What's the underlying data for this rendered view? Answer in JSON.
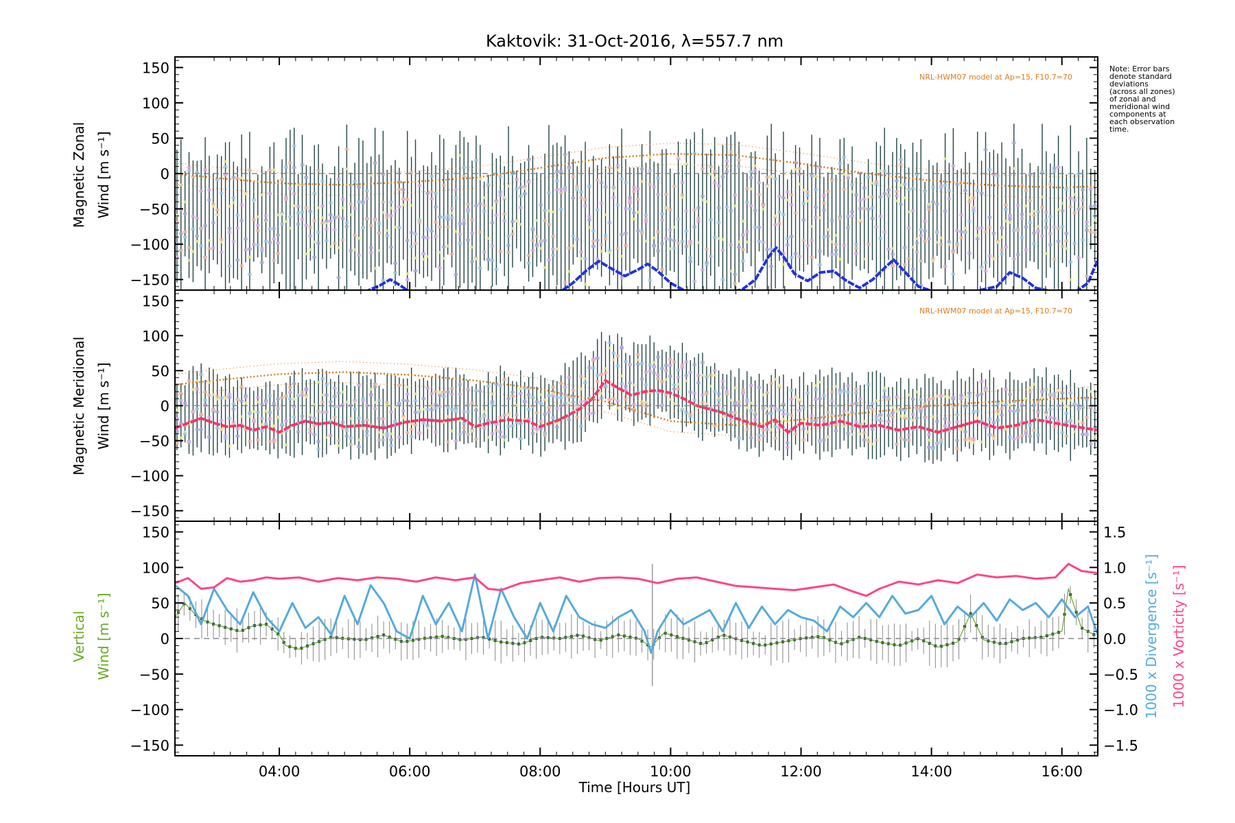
{
  "chart_data": [
    {
      "type": "line",
      "panel": "zonal",
      "title": "Kaktovik: 31-Oct-2016, λ=557.7 nm",
      "ylabel_line1": "Magnetic Zonal",
      "ylabel_line2": "Wind [m s⁻¹]",
      "xlabel": "",
      "model_label": "NRL-HWM07 model at Ap=15, F10.7=70",
      "ylim": [
        -165,
        165
      ],
      "yticks": [
        -150,
        -100,
        -50,
        0,
        50,
        100,
        150
      ],
      "xlim_hours": [
        2.4,
        16.55
      ],
      "series": [
        {
          "color": "#2233dd",
          "x": [
            2.4,
            3.2,
            4.0,
            4.8,
            5.3,
            5.55,
            5.7,
            5.85,
            6.0,
            7.2,
            8.3,
            8.5,
            8.7,
            8.9,
            9.1,
            9.3,
            9.5,
            9.65,
            9.8,
            10.0,
            10.2,
            10.5,
            10.7,
            10.9,
            11.1,
            11.3,
            11.5,
            11.62,
            11.75,
            11.9,
            12.1,
            12.3,
            12.5,
            12.7,
            12.9,
            13.1,
            13.3,
            13.42,
            13.6,
            13.8,
            14.0,
            14.6,
            15.0,
            15.2,
            15.4,
            15.6,
            15.9,
            16.2,
            16.4,
            16.55
          ],
          "values": [
            -168,
            -168,
            -168,
            -168,
            -168,
            -158,
            -150,
            -158,
            -168,
            -168,
            -168,
            -155,
            -138,
            -124,
            -135,
            -145,
            -136,
            -128,
            -138,
            -155,
            -165,
            -168,
            -166,
            -168,
            -164,
            -150,
            -118,
            -105,
            -120,
            -142,
            -152,
            -140,
            -138,
            -152,
            -162,
            -150,
            -132,
            -122,
            -140,
            -160,
            -166,
            -168,
            -160,
            -140,
            -148,
            -162,
            -168,
            -168,
            -155,
            -122
          ]
        },
        {
          "name": "NRL-HWM07",
          "color": "#e07a1a",
          "x": [
            2.4,
            3.0,
            4.0,
            5.0,
            6.0,
            7.0,
            8.0,
            9.0,
            10.0,
            11.0,
            12.0,
            13.0,
            14.0,
            15.0,
            16.0,
            16.55
          ],
          "values": [
            0,
            -6,
            -14,
            -16,
            -12,
            -6,
            8,
            22,
            28,
            26,
            14,
            0,
            -10,
            -17,
            -20,
            -18
          ]
        }
      ]
    },
    {
      "type": "line",
      "panel": "meridional",
      "ylabel_line1": "Magnetic Meridional",
      "ylabel_line2": "Wind [m s⁻¹]",
      "model_label": "NRL-HWM07 model at Ap=15, F10.7=70",
      "ylim": [
        -165,
        165
      ],
      "yticks": [
        -150,
        -100,
        -50,
        0,
        50,
        100,
        150
      ],
      "series": [
        {
          "color": "#ff3366",
          "x": [
            2.4,
            2.6,
            2.8,
            3.0,
            3.2,
            3.4,
            3.6,
            3.8,
            4.0,
            4.2,
            4.4,
            4.6,
            4.8,
            5.0,
            5.3,
            5.6,
            5.9,
            6.2,
            6.5,
            6.8,
            7.0,
            7.2,
            7.5,
            7.8,
            8.0,
            8.3,
            8.6,
            8.8,
            9.0,
            9.2,
            9.4,
            9.6,
            9.8,
            10.0,
            10.2,
            10.4,
            10.6,
            10.8,
            11.0,
            11.2,
            11.4,
            11.6,
            11.8,
            12.0,
            12.3,
            12.6,
            12.9,
            13.2,
            13.5,
            13.8,
            14.1,
            14.4,
            14.7,
            15.0,
            15.3,
            15.6,
            15.9,
            16.2,
            16.55
          ],
          "values": [
            -32,
            -25,
            -18,
            -25,
            -30,
            -28,
            -35,
            -30,
            -38,
            -28,
            -22,
            -26,
            -24,
            -30,
            -28,
            -32,
            -24,
            -20,
            -22,
            -18,
            -30,
            -25,
            -20,
            -22,
            -30,
            -20,
            -5,
            10,
            36,
            25,
            15,
            20,
            22,
            18,
            10,
            0,
            -5,
            -10,
            -18,
            -24,
            -30,
            -20,
            -38,
            -25,
            -28,
            -22,
            -30,
            -28,
            -35,
            -30,
            -38,
            -30,
            -22,
            -32,
            -28,
            -20,
            -25,
            -30,
            -35
          ]
        },
        {
          "name": "NRL-HWM07",
          "color": "#e07a1a",
          "x": [
            2.4,
            3.0,
            4.0,
            5.0,
            6.0,
            7.0,
            8.0,
            8.5,
            9.0,
            9.5,
            10.0,
            11.0,
            12.0,
            13.0,
            14.0,
            15.0,
            16.0,
            16.55
          ],
          "values": [
            30,
            36,
            45,
            48,
            44,
            36,
            24,
            14,
            6,
            -8,
            -22,
            -28,
            -20,
            -10,
            0,
            6,
            10,
            12
          ]
        }
      ]
    },
    {
      "type": "line",
      "panel": "vertical",
      "ylabel_line1": "Vertical",
      "ylabel_line2": "Wind [m s⁻¹]",
      "xlabel": "Time [Hours UT]",
      "y2label_divergence": "1000 x Divergence [s⁻¹]",
      "y2label_vorticity": "1000 x Vorticity [s⁻¹]",
      "ylim": [
        -165,
        165
      ],
      "yticks": [
        -150,
        -100,
        -50,
        0,
        50,
        100,
        150
      ],
      "y2lim": [
        -1.65,
        1.65
      ],
      "y2ticks": [
        "-1.5",
        "-1.0",
        "-0.5",
        "0.0",
        "0.5",
        "1.0",
        "1.5"
      ],
      "xticks": [
        "04:00",
        "06:00",
        "08:00",
        "10:00",
        "12:00",
        "14:00",
        "16:00"
      ],
      "series": [
        {
          "color": "#66aa22",
          "x": [
            2.4,
            2.55,
            2.7,
            2.85,
            3.0,
            3.2,
            3.4,
            3.6,
            3.8,
            4.0,
            4.1,
            4.3,
            4.5,
            4.8,
            5.0,
            5.3,
            5.6,
            5.9,
            6.2,
            6.5,
            6.8,
            7.1,
            7.4,
            7.7,
            8.0,
            8.3,
            8.6,
            8.9,
            9.2,
            9.5,
            9.7,
            9.9,
            10.2,
            10.5,
            10.8,
            11.1,
            11.4,
            11.7,
            12.0,
            12.3,
            12.6,
            12.9,
            13.2,
            13.5,
            13.8,
            14.1,
            14.4,
            14.6,
            14.8,
            15.1,
            15.4,
            15.7,
            16.0,
            16.1,
            16.3,
            16.5
          ],
          "values": [
            30,
            50,
            35,
            25,
            20,
            15,
            10,
            18,
            20,
            5,
            -10,
            -15,
            -8,
            2,
            0,
            -2,
            5,
            -5,
            0,
            3,
            -2,
            2,
            -5,
            -8,
            2,
            0,
            5,
            -3,
            5,
            0,
            -12,
            8,
            0,
            -8,
            5,
            -3,
            -10,
            -5,
            0,
            3,
            -8,
            2,
            -5,
            -10,
            0,
            -12,
            -5,
            35,
            -2,
            -8,
            0,
            2,
            10,
            70,
            15,
            5
          ]
        },
        {
          "color": "#55aadd",
          "x": [
            2.4,
            2.6,
            2.8,
            3.0,
            3.2,
            3.4,
            3.6,
            3.8,
            4.0,
            4.2,
            4.4,
            4.6,
            4.8,
            5.0,
            5.2,
            5.4,
            5.6,
            5.8,
            6.0,
            6.2,
            6.4,
            6.6,
            6.8,
            7.0,
            7.2,
            7.4,
            7.6,
            7.8,
            8.0,
            8.2,
            8.4,
            8.6,
            8.8,
            9.0,
            9.2,
            9.4,
            9.6,
            9.7,
            9.8,
            10.0,
            10.2,
            10.4,
            10.6,
            10.8,
            11.0,
            11.2,
            11.4,
            11.6,
            11.8,
            12.0,
            12.2,
            12.4,
            12.6,
            12.8,
            13.0,
            13.2,
            13.4,
            13.6,
            13.8,
            14.0,
            14.2,
            14.4,
            14.6,
            14.8,
            15.0,
            15.2,
            15.4,
            15.6,
            15.8,
            16.0,
            16.2,
            16.4,
            16.55
          ],
          "values": [
            0.75,
            0.6,
            0.2,
            0.7,
            0.4,
            0.2,
            0.65,
            0.3,
            0.1,
            0.5,
            0.15,
            0.3,
            0.05,
            0.6,
            0.2,
            0.75,
            0.5,
            0.1,
            0.0,
            0.6,
            0.2,
            0.5,
            0.1,
            0.9,
            0.0,
            0.7,
            0.3,
            0.0,
            0.5,
            0.1,
            0.6,
            0.3,
            0.2,
            0.15,
            0.3,
            0.4,
            0.1,
            -0.2,
            0.1,
            0.4,
            0.2,
            0.3,
            0.4,
            0.1,
            0.5,
            0.15,
            0.45,
            0.2,
            0.4,
            0.3,
            0.25,
            0.1,
            0.45,
            0.3,
            0.5,
            0.3,
            0.6,
            0.35,
            0.4,
            0.6,
            0.2,
            0.45,
            0.3,
            0.5,
            0.25,
            0.55,
            0.4,
            0.5,
            0.3,
            0.55,
            0.3,
            0.45,
            0.05
          ]
        },
        {
          "color": "#ff4488",
          "x": [
            2.4,
            2.6,
            2.8,
            3.0,
            3.2,
            3.4,
            3.6,
            3.8,
            4.0,
            4.3,
            4.6,
            4.9,
            5.2,
            5.5,
            5.8,
            6.1,
            6.4,
            6.7,
            7.0,
            7.2,
            7.4,
            7.7,
            8.0,
            8.3,
            8.6,
            8.9,
            9.2,
            9.5,
            9.8,
            10.1,
            10.4,
            10.7,
            11.0,
            11.3,
            11.6,
            11.9,
            12.2,
            12.5,
            12.8,
            13.0,
            13.2,
            13.5,
            13.8,
            14.1,
            14.4,
            14.7,
            15.0,
            15.3,
            15.6,
            15.9,
            16.1,
            16.3,
            16.55
          ],
          "values": [
            0.78,
            0.85,
            0.7,
            0.72,
            0.85,
            0.8,
            0.82,
            0.86,
            0.84,
            0.86,
            0.8,
            0.85,
            0.82,
            0.86,
            0.84,
            0.8,
            0.86,
            0.82,
            0.86,
            0.7,
            0.68,
            0.78,
            0.82,
            0.86,
            0.8,
            0.85,
            0.86,
            0.84,
            0.78,
            0.84,
            0.86,
            0.8,
            0.74,
            0.72,
            0.7,
            0.68,
            0.72,
            0.76,
            0.66,
            0.6,
            0.7,
            0.8,
            0.76,
            0.82,
            0.78,
            0.9,
            0.86,
            0.88,
            0.84,
            0.86,
            1.05,
            0.95,
            0.92
          ]
        }
      ]
    }
  ],
  "note_lines": [
    "Note: Error bars",
    "denote standard",
    "deviations",
    "(across all zones)",
    "of zonal and",
    "meridional wind",
    "components at",
    "each observation",
    "time."
  ]
}
